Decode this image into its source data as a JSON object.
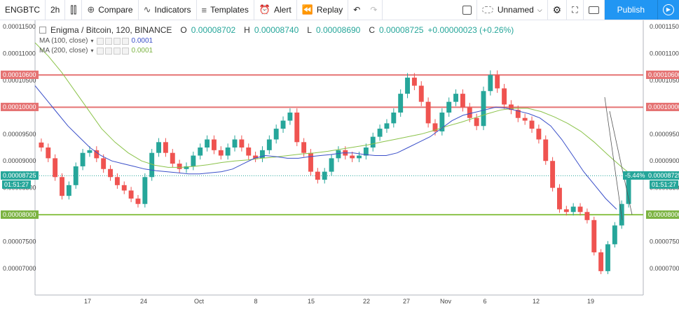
{
  "toolbar": {
    "symbol": "ENGBTC",
    "interval": "2h",
    "compare": "Compare",
    "indicators": "Indicators",
    "templates": "Templates",
    "alert": "Alert",
    "replay": "Replay",
    "layout_name": "Unnamed",
    "publish": "Publish"
  },
  "legend": {
    "title": "Enigma / Bitcoin, 120, BINANCE",
    "o_label": "O",
    "o_value": "0.00008702",
    "h_label": "H",
    "h_value": "0.00008740",
    "l_label": "L",
    "l_value": "0.00008690",
    "c_label": "C",
    "c_value": "0.00008725",
    "change": "+0.00000023 (+0.26%)",
    "ma1_label": "MA (100, close)",
    "ma1_value": "0.0001",
    "ma2_label": "MA (200, close)",
    "ma2_value": "0.0001"
  },
  "price_axis": {
    "ticks": [
      "0.00011500",
      "0.00011000",
      "0.00010500",
      "0.00010000",
      "0.00009500",
      "0.00009000",
      "0.00008500",
      "0.00008000",
      "0.00007500",
      "0.00007000"
    ],
    "tick_values": [
      0.000115,
      0.00011,
      0.000105,
      0.0001,
      9.5e-05,
      9e-05,
      8.5e-05,
      8e-05,
      7.5e-05,
      7e-05
    ],
    "hline_labels": [
      "0.00010600",
      "0.00010000",
      "0.00008000"
    ],
    "hline_values": [
      0.000106,
      0.0001,
      8e-05
    ],
    "current_label": "0.00008725",
    "current_value": 8.725e-05,
    "countdown": "01:51:27",
    "change_pct": "-5.44%"
  },
  "time_axis": {
    "ticks": [
      "17",
      "24",
      "Oct",
      "8",
      "15",
      "22",
      "27",
      "Nov",
      "6",
      "12",
      "19"
    ]
  },
  "colors": {
    "up": "#26a69a",
    "down": "#ef5350",
    "ma100": "#3a4fc9",
    "ma200": "#8bc34a",
    "resistance": "#e57373",
    "support": "#8bc34a",
    "accent": "#2196f3"
  },
  "chart_data": {
    "type": "candlestick",
    "close": [
      9.25e-05,
      9.05e-05,
      8.7e-05,
      8.35e-05,
      8.55e-05,
      8.9e-05,
      9.15e-05,
      9.2e-05,
      9.05e-05,
      8.85e-05,
      8.7e-05,
      8.55e-05,
      8.45e-05,
      8.3e-05,
      8.2e-05,
      8.7e-05,
      9.15e-05,
      9.35e-05,
      9.15e-05,
      8.95e-05,
      8.85e-05,
      8.9e-05,
      9.1e-05,
      9.25e-05,
      9.4e-05,
      9.2e-05,
      9.1e-05,
      9.25e-05,
      9.4e-05,
      9.25e-05,
      9.1e-05,
      9.05e-05,
      9.2e-05,
      9.4e-05,
      9.6e-05,
      9.75e-05,
      9.9e-05,
      9.35e-05,
      9.15e-05,
      8.8e-05,
      8.65e-05,
      8.8e-05,
      9.05e-05,
      9.2e-05,
      9.1e-05,
      9.05e-05,
      9.1e-05,
      9.25e-05,
      9.45e-05,
      9.6e-05,
      9.7e-05,
      9.9e-05,
      0.0001025,
      0.0001055,
      0.000104,
      0.000101,
      9.7e-05,
      9.55e-05,
      9.9e-05,
      0.000101,
      0.0001025,
      0.0001,
      9.8e-05,
      9.65e-05,
      0.000103,
      0.000106,
      0.0001035,
      0.0001005,
      9.95e-05,
      9.8e-05,
      9.75e-05,
      9.6e-05,
      9.4e-05,
      9e-05,
      8.5e-05,
      8.1e-05,
      8.05e-05,
      8.15e-05,
      8.05e-05,
      7.9e-05,
      7.3e-05,
      6.95e-05,
      7.45e-05,
      7.8e-05,
      8.2e-05,
      8.72e-05
    ],
    "ma100": [
      0.000104,
      0.0001015,
      9.9e-05,
      9.65e-05,
      9.45e-05,
      9.25e-05,
      9.1e-05,
      9e-05,
      8.95e-05,
      8.9e-05,
      8.85e-05,
      8.82e-05,
      8.8e-05,
      8.78e-05,
      8.76e-05,
      8.76e-05,
      8.78e-05,
      8.8e-05,
      8.85e-05,
      8.95e-05,
      9.05e-05,
      9.1e-05,
      9.08e-05,
      9.05e-05,
      9.05e-05,
      9.08e-05,
      9.1e-05,
      9.12e-05,
      9.15e-05,
      9.15e-05,
      9.12e-05,
      9.1e-05,
      9.1e-05,
      9.15e-05,
      9.25e-05,
      9.35e-05,
      9.45e-05,
      9.6e-05,
      9.75e-05,
      9.85e-05,
      9.9e-05,
      9.95e-05,
      0.0001,
      9.98e-05,
      9.93e-05,
      9.88e-05,
      9.8e-05,
      9.65e-05,
      9.4e-05,
      9.1e-05,
      8.8e-05,
      8.55e-05,
      8.3e-05,
      8.1e-05
    ],
    "ma200": [
      0.000112,
      0.0001095,
      0.0001065,
      0.000103,
      9.95e-05,
      9.6e-05,
      9.35e-05,
      9.15e-05,
      9e-05,
      8.92e-05,
      8.88e-05,
      8.88e-05,
      8.9e-05,
      8.93e-05,
      8.97e-05,
      9e-05,
      9.02e-05,
      9.05e-05,
      9.07e-05,
      9.1e-05,
      9.13e-05,
      9.15e-05,
      9.18e-05,
      9.22e-05,
      9.26e-05,
      9.3e-05,
      9.35e-05,
      9.4e-05,
      9.45e-05,
      9.5e-05,
      9.57e-05,
      9.65e-05,
      9.72e-05,
      9.8e-05,
      9.88e-05,
      9.95e-05,
      9.98e-05,
      9.98e-05,
      9.92e-05,
      9.82e-05,
      9.7e-05,
      9.55e-05,
      9.35e-05,
      9.12e-05,
      8.9e-05,
      8.7e-05
    ]
  }
}
